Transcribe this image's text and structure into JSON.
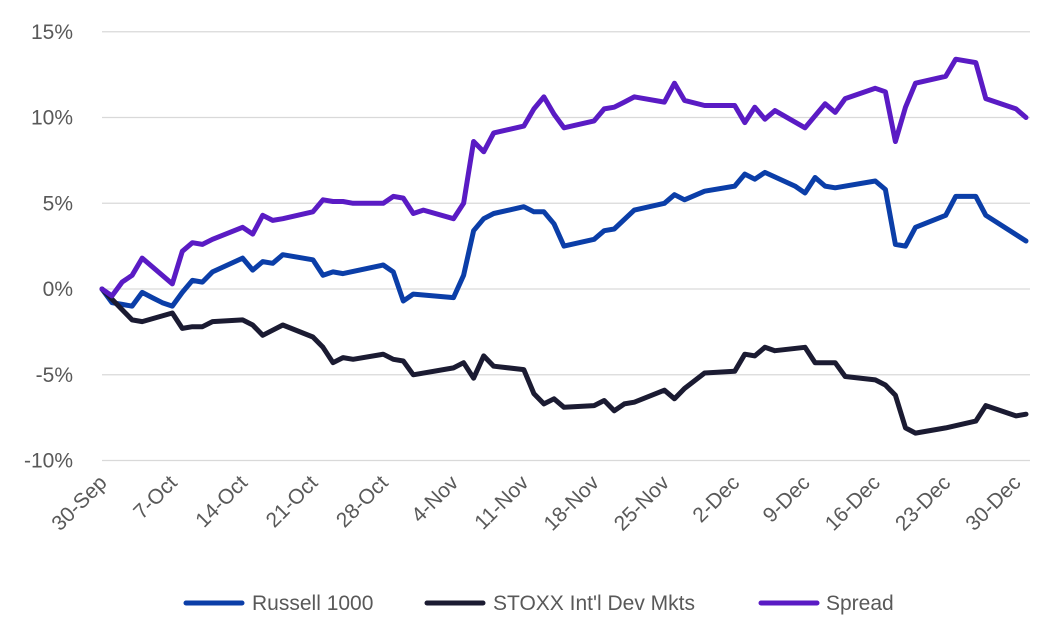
{
  "chart_data": {
    "type": "line",
    "title": "",
    "xlabel": "",
    "ylabel": "",
    "x_ticks": [
      "30-Sep",
      "7-Oct",
      "14-Oct",
      "21-Oct",
      "28-Oct",
      "4-Nov",
      "11-Nov",
      "18-Nov",
      "25-Nov",
      "2-Dec",
      "9-Dec",
      "16-Dec",
      "23-Dec",
      "30-Dec"
    ],
    "y_ticks": [
      15,
      10,
      5,
      0,
      -5,
      -10
    ],
    "y_tick_labels": [
      "15%",
      "10%",
      "5%",
      "0%",
      "-5%",
      "-10%"
    ],
    "ylim": [
      -10,
      15
    ],
    "xlim_days": [
      0,
      92
    ],
    "grid": "horizontal",
    "legend_position": "bottom",
    "series": [
      {
        "name": "Russell 1000",
        "color": "#0b3ea8",
        "points": [
          [
            0,
            0
          ],
          [
            1,
            -0.8
          ],
          [
            2,
            -0.9
          ],
          [
            3,
            -1
          ],
          [
            4,
            -0.2
          ],
          [
            5,
            -0.5
          ],
          [
            6,
            -0.8
          ],
          [
            7,
            -1
          ],
          [
            8,
            -0.2
          ],
          [
            9,
            0.5
          ],
          [
            10,
            0.4
          ],
          [
            11,
            1
          ],
          [
            14,
            1.8
          ],
          [
            15,
            1.1
          ],
          [
            16,
            1.6
          ],
          [
            17,
            1.5
          ],
          [
            18,
            2
          ],
          [
            21,
            1.7
          ],
          [
            22,
            0.8
          ],
          [
            23,
            1
          ],
          [
            24,
            0.9
          ],
          [
            28,
            1.4
          ],
          [
            29,
            1
          ],
          [
            30,
            -0.7
          ],
          [
            31,
            -0.3
          ],
          [
            35,
            -0.5
          ],
          [
            36,
            0.8
          ],
          [
            37,
            3.4
          ],
          [
            38,
            4.1
          ],
          [
            39,
            4.4
          ],
          [
            42,
            4.8
          ],
          [
            43,
            4.5
          ],
          [
            44,
            4.5
          ],
          [
            45,
            3.8
          ],
          [
            46,
            2.5
          ],
          [
            49,
            2.9
          ],
          [
            50,
            3.4
          ],
          [
            51,
            3.5
          ],
          [
            53,
            4.6
          ],
          [
            56,
            5
          ],
          [
            57,
            5.5
          ],
          [
            58,
            5.2
          ],
          [
            60,
            5.7
          ],
          [
            63,
            6
          ],
          [
            64,
            6.7
          ],
          [
            65,
            6.4
          ],
          [
            66,
            6.8
          ],
          [
            69,
            6
          ],
          [
            70,
            5.6
          ],
          [
            71,
            6.5
          ],
          [
            72,
            6
          ],
          [
            73,
            5.9
          ],
          [
            77,
            6.3
          ],
          [
            78,
            5.8
          ],
          [
            79,
            2.6
          ],
          [
            80,
            2.5
          ],
          [
            81,
            3.6
          ],
          [
            84,
            4.3
          ],
          [
            85,
            5.4
          ],
          [
            87,
            5.4
          ],
          [
            88,
            4.3
          ],
          [
            92,
            2.8
          ]
        ]
      },
      {
        "name": "STOXX Int'l Dev Mkts",
        "color": "#1b1b32",
        "points": [
          [
            0,
            0
          ],
          [
            1,
            -0.6
          ],
          [
            2,
            -1.2
          ],
          [
            3,
            -1.8
          ],
          [
            4,
            -1.9
          ],
          [
            7,
            -1.4
          ],
          [
            8,
            -2.3
          ],
          [
            9,
            -2.2
          ],
          [
            10,
            -2.2
          ],
          [
            11,
            -1.9
          ],
          [
            14,
            -1.8
          ],
          [
            15,
            -2.1
          ],
          [
            16,
            -2.7
          ],
          [
            17,
            -2.4
          ],
          [
            18,
            -2.1
          ],
          [
            21,
            -2.8
          ],
          [
            22,
            -3.4
          ],
          [
            23,
            -4.3
          ],
          [
            24,
            -4
          ],
          [
            25,
            -4.1
          ],
          [
            28,
            -3.8
          ],
          [
            29,
            -4.1
          ],
          [
            30,
            -4.2
          ],
          [
            31,
            -5
          ],
          [
            35,
            -4.6
          ],
          [
            36,
            -4.3
          ],
          [
            37,
            -5.2
          ],
          [
            38,
            -3.9
          ],
          [
            39,
            -4.5
          ],
          [
            42,
            -4.7
          ],
          [
            43,
            -6.1
          ],
          [
            44,
            -6.7
          ],
          [
            45,
            -6.4
          ],
          [
            46,
            -6.9
          ],
          [
            49,
            -6.8
          ],
          [
            50,
            -6.5
          ],
          [
            51,
            -7.1
          ],
          [
            52,
            -6.7
          ],
          [
            53,
            -6.6
          ],
          [
            56,
            -5.9
          ],
          [
            57,
            -6.4
          ],
          [
            58,
            -5.8
          ],
          [
            60,
            -4.9
          ],
          [
            63,
            -4.8
          ],
          [
            64,
            -3.8
          ],
          [
            65,
            -3.9
          ],
          [
            66,
            -3.4
          ],
          [
            67,
            -3.6
          ],
          [
            70,
            -3.4
          ],
          [
            71,
            -4.3
          ],
          [
            72,
            -4.3
          ],
          [
            73,
            -4.3
          ],
          [
            74,
            -5.1
          ],
          [
            77,
            -5.3
          ],
          [
            78,
            -5.6
          ],
          [
            79,
            -6.2
          ],
          [
            80,
            -8.1
          ],
          [
            81,
            -8.4
          ],
          [
            84,
            -8.1
          ],
          [
            87,
            -7.7
          ],
          [
            88,
            -6.8
          ],
          [
            91,
            -7.4
          ],
          [
            92,
            -7.3
          ]
        ]
      },
      {
        "name": "Spread",
        "color": "#5a1bc4",
        "points": [
          [
            0,
            0
          ],
          [
            1,
            -0.4
          ],
          [
            2,
            0.4
          ],
          [
            3,
            0.8
          ],
          [
            4,
            1.8
          ],
          [
            7,
            0.3
          ],
          [
            8,
            2.2
          ],
          [
            9,
            2.7
          ],
          [
            10,
            2.6
          ],
          [
            11,
            2.9
          ],
          [
            14,
            3.6
          ],
          [
            15,
            3.2
          ],
          [
            16,
            4.3
          ],
          [
            17,
            4
          ],
          [
            18,
            4.1
          ],
          [
            21,
            4.5
          ],
          [
            22,
            5.2
          ],
          [
            23,
            5.1
          ],
          [
            24,
            5.1
          ],
          [
            25,
            5
          ],
          [
            28,
            5
          ],
          [
            29,
            5.4
          ],
          [
            30,
            5.3
          ],
          [
            31,
            4.4
          ],
          [
            32,
            4.6
          ],
          [
            35,
            4.1
          ],
          [
            36,
            5
          ],
          [
            37,
            8.6
          ],
          [
            38,
            8
          ],
          [
            39,
            9.1
          ],
          [
            42,
            9.5
          ],
          [
            43,
            10.5
          ],
          [
            44,
            11.2
          ],
          [
            45,
            10.2
          ],
          [
            46,
            9.4
          ],
          [
            49,
            9.8
          ],
          [
            50,
            10.5
          ],
          [
            51,
            10.6
          ],
          [
            52,
            10.9
          ],
          [
            53,
            11.2
          ],
          [
            56,
            10.9
          ],
          [
            57,
            12
          ],
          [
            58,
            11
          ],
          [
            60,
            10.7
          ],
          [
            63,
            10.7
          ],
          [
            64,
            9.7
          ],
          [
            65,
            10.6
          ],
          [
            66,
            9.9
          ],
          [
            67,
            10.4
          ],
          [
            70,
            9.4
          ],
          [
            72,
            10.8
          ],
          [
            73,
            10.3
          ],
          [
            74,
            11.1
          ],
          [
            77,
            11.7
          ],
          [
            78,
            11.5
          ],
          [
            79,
            8.6
          ],
          [
            80,
            10.6
          ],
          [
            81,
            12
          ],
          [
            84,
            12.4
          ],
          [
            85,
            13.4
          ],
          [
            87,
            13.2
          ],
          [
            88,
            11.1
          ],
          [
            91,
            10.5
          ],
          [
            92,
            10
          ]
        ]
      }
    ]
  }
}
